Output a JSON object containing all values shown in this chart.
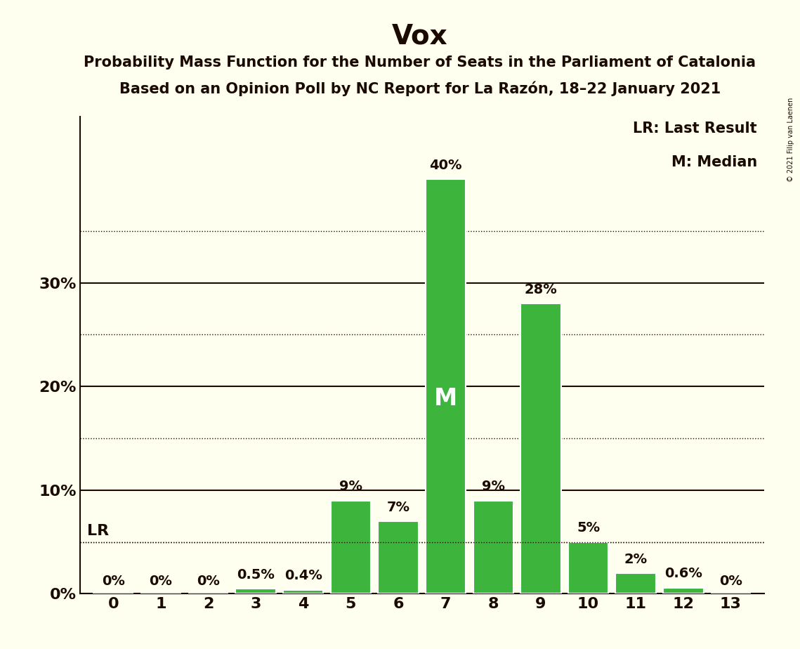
{
  "title": "Vox",
  "subtitle1": "Probability Mass Function for the Number of Seats in the Parliament of Catalonia",
  "subtitle2": "Based on an Opinion Poll by NC Report for La Razón, 18–22 January 2021",
  "copyright": "© 2021 Filip van Laenen",
  "categories": [
    0,
    1,
    2,
    3,
    4,
    5,
    6,
    7,
    8,
    9,
    10,
    11,
    12,
    13
  ],
  "values": [
    0.0,
    0.0,
    0.0,
    0.5,
    0.4,
    9.0,
    7.0,
    40.0,
    9.0,
    28.0,
    5.0,
    2.0,
    0.6,
    0.0
  ],
  "bar_labels": [
    "0%",
    "0%",
    "0%",
    "0.5%",
    "0.4%",
    "9%",
    "7%",
    "40%",
    "9%",
    "28%",
    "5%",
    "2%",
    "0.6%",
    "0%"
  ],
  "bar_color": "#3db53d",
  "background_color": "#fffff0",
  "text_color": "#1a0a00",
  "yticks": [
    0,
    10,
    20,
    30
  ],
  "dotted_line_ticks": [
    5,
    15,
    25,
    35
  ],
  "ylim": [
    0,
    46
  ],
  "lr_line_value": 5.0,
  "lr_label": "LR",
  "median_bar_index": 7,
  "median_label": "M",
  "legend_lr": "LR: Last Result",
  "legend_m": "M: Median",
  "title_fontsize": 28,
  "subtitle_fontsize": 15,
  "tick_label_fontsize": 16,
  "bar_label_fontsize": 14,
  "legend_fontsize": 15,
  "median_fontsize": 24
}
